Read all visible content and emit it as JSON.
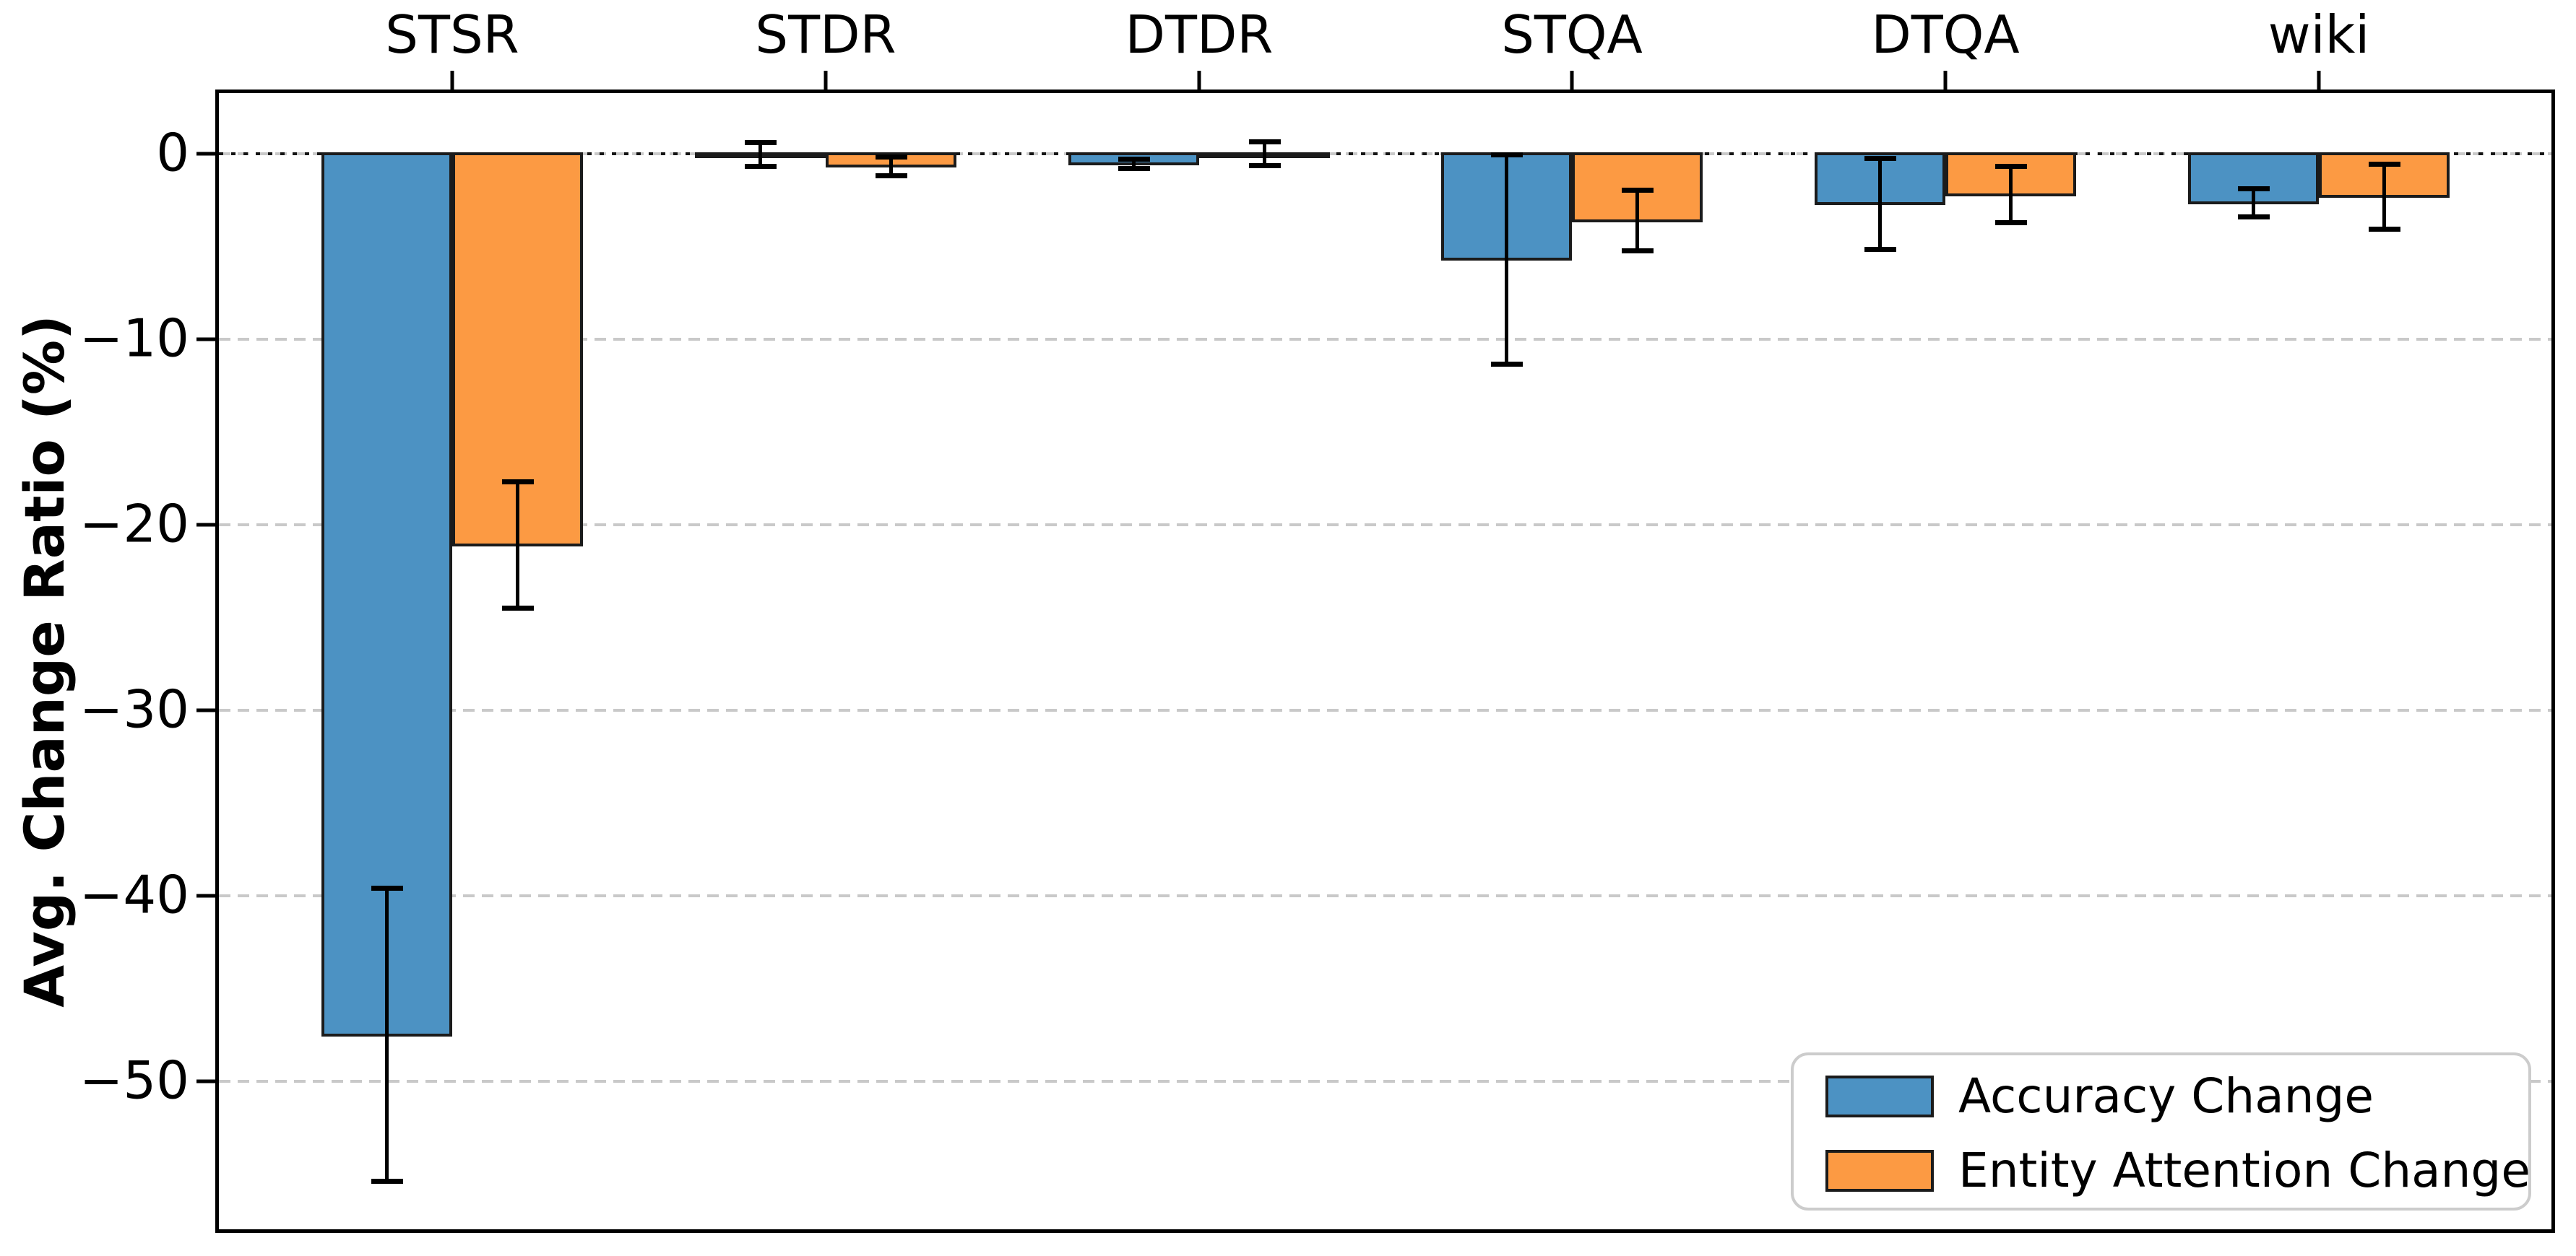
{
  "chart_data": {
    "type": "bar",
    "orientation": "vertical",
    "title": "",
    "xlabel": "",
    "ylabel": "Avg. Change Ratio (%)",
    "categories": [
      "STSR",
      "STDR",
      "DTDR",
      "STQA",
      "DTQA",
      "wiki"
    ],
    "series": [
      {
        "name": "Accuracy Change",
        "color": "#4C92C3",
        "values": [
          -47.5,
          -0.05,
          -0.55,
          -5.7,
          -2.7,
          -2.65
        ],
        "errors": [
          7.9,
          0.65,
          0.25,
          5.65,
          2.45,
          0.75
        ]
      },
      {
        "name": "Entity Attention Change",
        "color": "#FC9A43",
        "values": [
          -21.1,
          -0.68,
          0.0,
          -3.6,
          -2.2,
          -2.3
        ],
        "errors": [
          3.4,
          0.5,
          0.65,
          1.65,
          1.5,
          1.75
        ]
      }
    ],
    "bar_edge_color": "#1B1B1B",
    "error_bar_color": "#000000",
    "ylim": [
      -58.2,
      3.4
    ],
    "yaxis": {
      "ticks": [
        {
          "label": "0",
          "value": 0
        },
        {
          "label": "−10",
          "value": -10
        },
        {
          "label": "−20",
          "value": -20
        },
        {
          "label": "−30",
          "value": -30
        },
        {
          "label": "−40",
          "value": -40
        },
        {
          "label": "−50",
          "value": -50
        }
      ]
    },
    "xaxis": {
      "labels_position": "top"
    },
    "grid": {
      "axis": "y",
      "style": "dashed",
      "color": "#C9C9C9"
    },
    "zero_line": {
      "style": "dotted",
      "color": "#141414"
    },
    "legend": {
      "position": "lower right"
    }
  }
}
